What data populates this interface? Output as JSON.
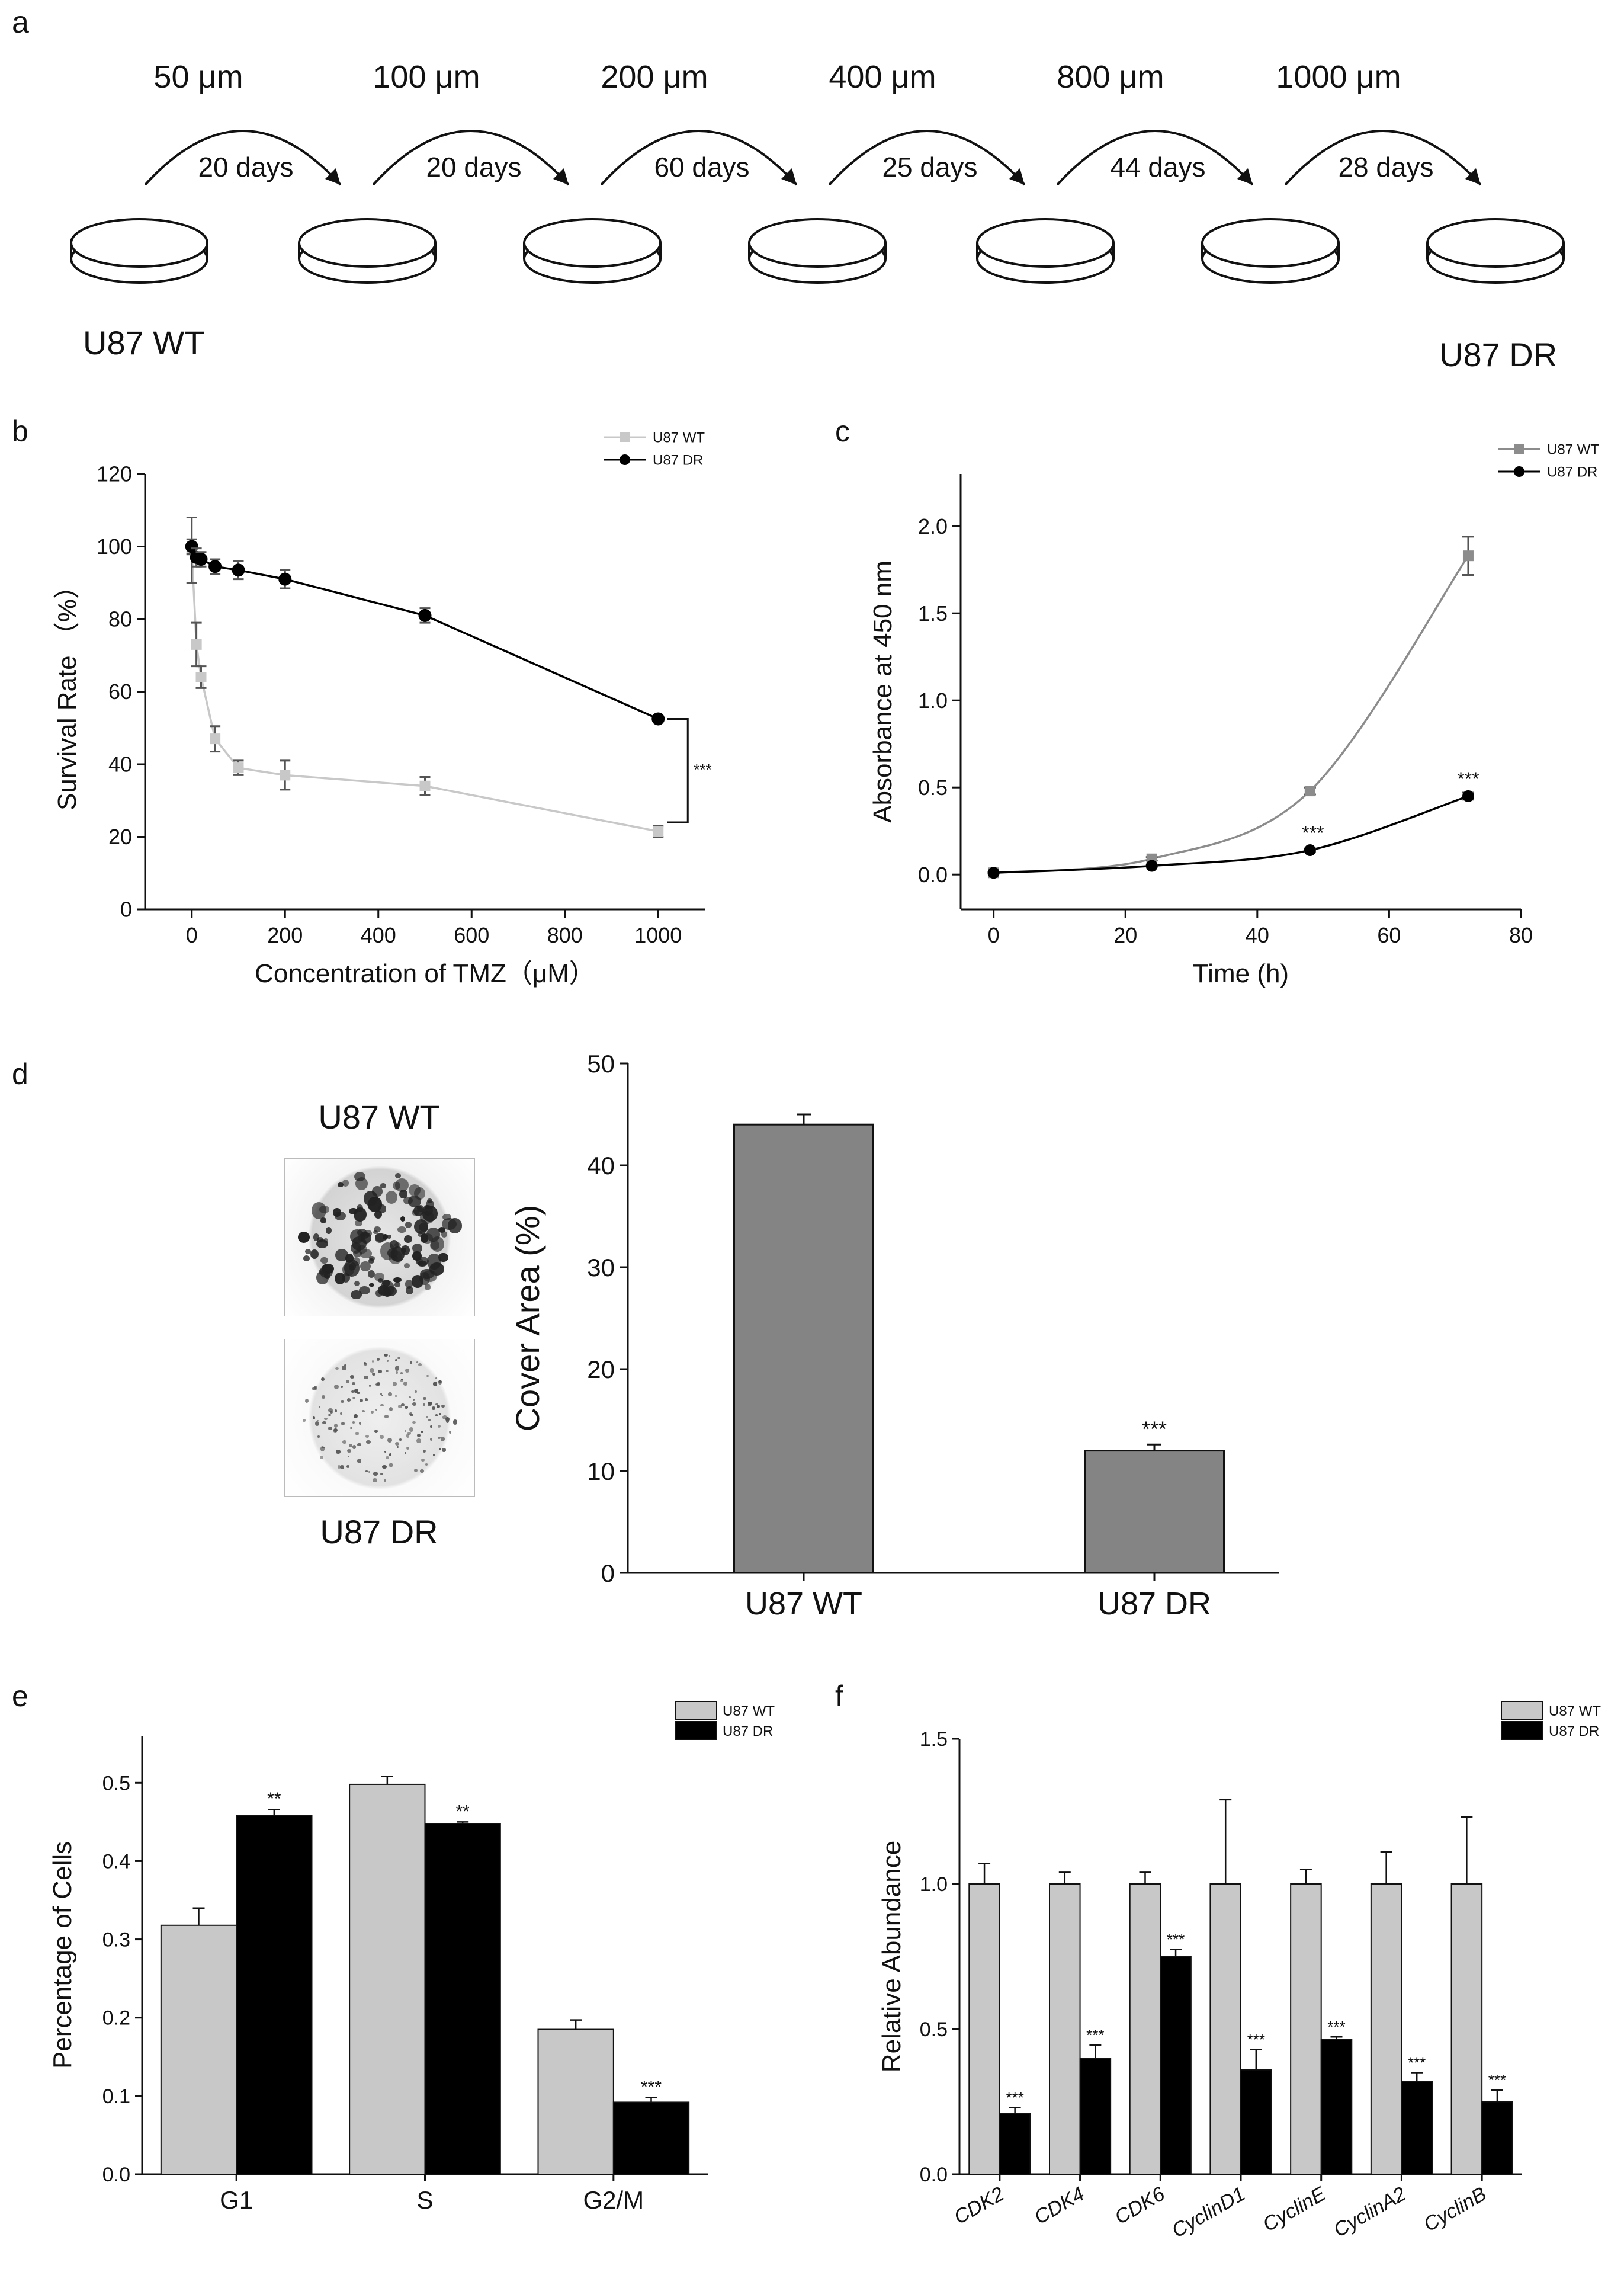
{
  "panels": {
    "a": {
      "letter": "a",
      "concentrations": [
        "50 μm",
        "100 μm",
        "200 μm",
        "400 μm",
        "800 μm",
        "1000 μm"
      ],
      "durations": [
        "20 days",
        "20 days",
        "60 days",
        "25 days",
        "44 days",
        "28 days"
      ],
      "start_label": "U87 WT",
      "end_label": "U87 DR"
    },
    "b": {
      "letter": "b"
    },
    "c": {
      "letter": "c"
    },
    "d": {
      "letter": "d",
      "image_top_label": "U87 WT",
      "image_bottom_label": "U87 DR"
    },
    "e": {
      "letter": "e"
    },
    "f": {
      "letter": "f"
    }
  },
  "colors": {
    "wt_light": "#c8c8c8",
    "wt_mid": "#8c8c8c",
    "dr": "#000000",
    "axis": "#111111",
    "bar_gray": "#848484"
  },
  "chart_data": [
    {
      "id": "b",
      "type": "line",
      "title": "",
      "xlabel": "Concentration of TMZ（μM）",
      "ylabel": "Survival Rate （%）",
      "xlim": [
        -100,
        1100
      ],
      "ylim": [
        0,
        120
      ],
      "xticks": [
        0,
        200,
        400,
        600,
        800,
        1000
      ],
      "yticks": [
        0,
        20,
        40,
        60,
        80,
        100,
        120
      ],
      "legend": "top-right",
      "annotation": "***",
      "series": [
        {
          "name": "U87 WT",
          "marker": "square",
          "x": [
            0,
            10,
            20,
            50,
            100,
            200,
            500,
            1000
          ],
          "y": [
            99,
            73,
            64,
            47,
            39,
            37,
            34,
            21.5
          ],
          "err": [
            9,
            6,
            3,
            3.5,
            2,
            4,
            2.5,
            1.5
          ]
        },
        {
          "name": "U87 DR",
          "marker": "circle",
          "x": [
            0,
            10,
            20,
            50,
            100,
            200,
            500,
            1000
          ],
          "y": [
            100,
            97,
            96.5,
            94.5,
            93.5,
            91,
            81,
            52.5
          ],
          "err": [
            2,
            2.5,
            2,
            2,
            2.5,
            2.5,
            2,
            0.5
          ]
        }
      ]
    },
    {
      "id": "c",
      "type": "line",
      "title": "",
      "xlabel": "Time (h)",
      "ylabel": "Absorbance at 450 nm",
      "xlim": [
        -5,
        80
      ],
      "ylim": [
        -0.2,
        2.3
      ],
      "xticks": [
        0,
        20,
        40,
        60,
        80
      ],
      "yticks": [
        0.0,
        0.5,
        1.0,
        1.5,
        2.0
      ],
      "legend": "top-right",
      "annotations": [
        "***",
        "***"
      ],
      "series": [
        {
          "name": "U87 WT",
          "marker": "square",
          "x": [
            0,
            24,
            48,
            72
          ],
          "y": [
            0.01,
            0.09,
            0.48,
            1.83
          ],
          "err": [
            0.005,
            0.01,
            0.02,
            0.11
          ]
        },
        {
          "name": "U87 DR",
          "marker": "circle",
          "x": [
            0,
            24,
            48,
            72
          ],
          "y": [
            0.01,
            0.05,
            0.14,
            0.45
          ],
          "err": [
            0.005,
            0.005,
            0.01,
            0.02
          ]
        }
      ]
    },
    {
      "id": "d",
      "type": "bar",
      "title": "",
      "xlabel": "",
      "ylabel": "Cover Area (%)",
      "ylim": [
        0,
        50
      ],
      "yticks": [
        0,
        10,
        20,
        30,
        40,
        50
      ],
      "categories": [
        "U87 WT",
        "U87 DR"
      ],
      "values": [
        44,
        12
      ],
      "err": [
        1,
        0.6
      ],
      "annotation": "***"
    },
    {
      "id": "e",
      "type": "bar",
      "title": "",
      "xlabel": "",
      "ylabel": "Percentage of Cells",
      "ylim": [
        0,
        0.56
      ],
      "yticks": [
        0.0,
        0.1,
        0.2,
        0.3,
        0.4,
        0.5
      ],
      "categories": [
        "G1",
        "S",
        "G2/M"
      ],
      "legend": "top-right",
      "series": [
        {
          "name": "U87 WT",
          "values": [
            0.318,
            0.498,
            0.185
          ],
          "err": [
            0.022,
            0.01,
            0.012
          ]
        },
        {
          "name": "U87 DR",
          "values": [
            0.458,
            0.448,
            0.092
          ],
          "err": [
            0.008,
            0.002,
            0.006
          ]
        }
      ],
      "annotations": [
        "**",
        "**",
        "***"
      ]
    },
    {
      "id": "f",
      "type": "bar",
      "title": "",
      "xlabel": "",
      "ylabel": "Relative Abundance",
      "ylim": [
        0,
        1.5
      ],
      "yticks": [
        0.0,
        0.5,
        1.0,
        1.5
      ],
      "categories": [
        "CDK2",
        "CDK4",
        "CDK6",
        "CyclinD1",
        "CyclinE",
        "CyclinA2",
        "CyclinB"
      ],
      "legend": "top-right",
      "series": [
        {
          "name": "U87 WT",
          "values": [
            1.0,
            1.0,
            1.0,
            1.0,
            1.0,
            1.0,
            1.0
          ],
          "err": [
            0.07,
            0.04,
            0.04,
            0.29,
            0.05,
            0.11,
            0.23
          ]
        },
        {
          "name": "U87 DR",
          "values": [
            0.21,
            0.4,
            0.75,
            0.36,
            0.465,
            0.32,
            0.25
          ],
          "err": [
            0.02,
            0.045,
            0.025,
            0.07,
            0.008,
            0.03,
            0.04
          ]
        }
      ],
      "annotations": [
        "***",
        "***",
        "***",
        "***",
        "***",
        "***",
        "***"
      ]
    }
  ]
}
